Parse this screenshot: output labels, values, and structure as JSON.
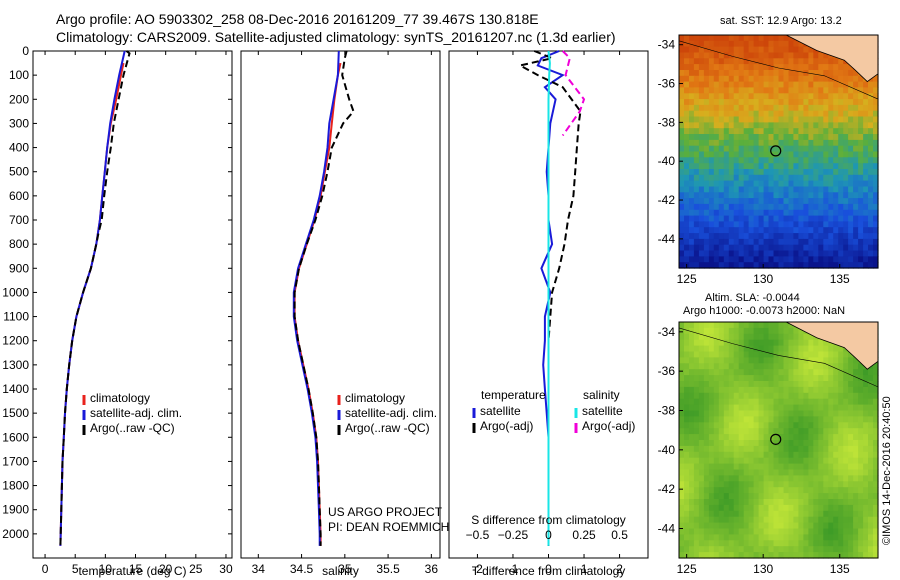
{
  "header": {
    "line1": "Argo profile: AO 5903302_258 08-Dec-2016 20161209_77 39.467S 130.818E",
    "line2": "Climatology: CARS2009. Satellite-adjusted climatology: synTS_20161207.nc (1.3d earlier)"
  },
  "colors": {
    "climatology": "#e8221c",
    "satellite": "#1a1ad8",
    "argo": "#000000",
    "salinity_satellite": "#18e6e6",
    "salinity_argo": "#f000d8"
  },
  "chart_data": [
    {
      "type": "line",
      "panel": "temperature",
      "xlabel": "temperature (deg C)",
      "ylabel": "",
      "xlim": [
        -2,
        31
      ],
      "ylim": [
        0,
        2100
      ],
      "y_reversed": true,
      "xticks": [
        0,
        5,
        10,
        15,
        20,
        25,
        30
      ],
      "yticks": [
        0,
        100,
        200,
        300,
        400,
        500,
        600,
        700,
        800,
        900,
        1000,
        1100,
        1200,
        1300,
        1400,
        1500,
        1600,
        1700,
        1800,
        1900,
        2000
      ],
      "legend_position": "bottom-right",
      "series": [
        {
          "name": "climatology",
          "style": "solid",
          "color_key": "climatology",
          "x": [
            13.0,
            12.6,
            11.8,
            10.9,
            10.3,
            9.9,
            9.5,
            9.1,
            8.5,
            7.6,
            6.3,
            5.2,
            4.5,
            4.0,
            3.6,
            3.3,
            3.1,
            2.9,
            2.8,
            2.7,
            2.6,
            2.55
          ],
          "y": [
            50,
            100,
            200,
            300,
            400,
            500,
            600,
            700,
            800,
            900,
            1000,
            1100,
            1200,
            1300,
            1400,
            1500,
            1600,
            1700,
            1800,
            1900,
            2000,
            2050
          ]
        },
        {
          "name": "satellite-adj. clim.",
          "style": "solid",
          "color_key": "satellite",
          "x": [
            13.2,
            12.3,
            11.5,
            10.8,
            10.3,
            9.9,
            9.5,
            9.1,
            8.5,
            7.6,
            6.3,
            5.2,
            4.5,
            4.0,
            3.6,
            3.3,
            3.1,
            2.9,
            2.8,
            2.7,
            2.6,
            2.55
          ],
          "y": [
            0,
            100,
            200,
            300,
            400,
            500,
            600,
            700,
            800,
            900,
            1000,
            1100,
            1200,
            1300,
            1400,
            1500,
            1600,
            1700,
            1800,
            1900,
            2000,
            2050
          ]
        },
        {
          "name": "Argo(..raw -QC)",
          "style": "dashed",
          "color_key": "argo",
          "x": [
            13.5,
            14.0,
            13.0,
            12.2,
            11.4,
            10.9,
            10.3,
            9.8,
            9.4,
            8.9,
            8.5,
            7.6,
            6.3,
            5.2,
            4.5,
            4.0,
            3.6,
            3.3,
            3.1,
            2.9,
            2.8,
            2.7,
            2.6,
            2.55
          ],
          "y": [
            0,
            10,
            100,
            200,
            300,
            400,
            500,
            600,
            700,
            750,
            800,
            900,
            1000,
            1100,
            1200,
            1300,
            1400,
            1500,
            1600,
            1700,
            1800,
            1900,
            2000,
            2050
          ]
        }
      ]
    },
    {
      "type": "line",
      "panel": "salinity",
      "xlabel": "salinity",
      "xlim": [
        33.8,
        36.1
      ],
      "ylim": [
        0,
        2100
      ],
      "y_reversed": true,
      "xticks": [
        34,
        34.5,
        35,
        35.5,
        36
      ],
      "xticklabels": [
        "34",
        "34.5",
        "35",
        "35.5",
        "36"
      ],
      "legend_position": "bottom-right",
      "series": [
        {
          "name": "climatology",
          "style": "solid",
          "color_key": "climatology",
          "x": [
            34.95,
            34.92,
            34.88,
            34.85,
            34.82,
            34.77,
            34.72,
            34.65,
            34.56,
            34.47,
            34.42,
            34.42,
            34.46,
            34.52,
            34.58,
            34.63,
            34.67,
            34.69,
            34.7,
            34.71,
            34.72,
            34.72
          ],
          "y": [
            50,
            100,
            200,
            300,
            400,
            500,
            600,
            700,
            800,
            900,
            1000,
            1100,
            1200,
            1300,
            1400,
            1500,
            1600,
            1700,
            1800,
            1900,
            2000,
            2050
          ]
        },
        {
          "name": "satellite-adj. clim.",
          "style": "solid",
          "color_key": "satellite",
          "x": [
            34.93,
            34.92,
            34.87,
            34.82,
            34.8,
            34.76,
            34.71,
            34.64,
            34.55,
            34.46,
            34.41,
            34.41,
            34.45,
            34.51,
            34.57,
            34.62,
            34.66,
            34.68,
            34.69,
            34.7,
            34.71,
            34.71
          ],
          "y": [
            0,
            100,
            200,
            300,
            400,
            500,
            600,
            700,
            800,
            900,
            1000,
            1100,
            1200,
            1300,
            1400,
            1500,
            1600,
            1700,
            1800,
            1900,
            2000,
            2050
          ]
        },
        {
          "name": "Argo(..raw -QC)",
          "style": "dashed",
          "color_key": "argo",
          "x": [
            35.02,
            35.0,
            34.97,
            35.05,
            35.1,
            34.98,
            34.85,
            34.8,
            34.74,
            34.66,
            34.56,
            34.47,
            34.42,
            34.42,
            34.46,
            34.52,
            34.58,
            34.63,
            34.67,
            34.69,
            34.7,
            34.71,
            34.72,
            34.72
          ],
          "y": [
            0,
            30,
            100,
            200,
            250,
            300,
            400,
            500,
            600,
            700,
            800,
            900,
            1000,
            1100,
            1200,
            1300,
            1400,
            1500,
            1600,
            1700,
            1800,
            1900,
            2000,
            2050
          ]
        }
      ]
    },
    {
      "type": "line",
      "panel": "differences",
      "xlabel": "T difference from climatology",
      "top_label": "S difference from climatology",
      "xlim": [
        -2.8,
        2.8
      ],
      "ylim": [
        0,
        2100
      ],
      "y_reversed": true,
      "xticks": [
        -2,
        -1,
        0,
        1,
        2
      ],
      "top_ticks": [
        -0.5,
        -0.25,
        0,
        0.25,
        0.5
      ],
      "top_ticklabels": [
        "−0.5",
        "−0.25",
        "0",
        "0.25",
        "0.5"
      ],
      "legend": {
        "temperature_heading": "temperature",
        "salinity_heading": "salinity",
        "temperature_entries": [
          "satellite",
          "Argo(-adj)"
        ],
        "salinity_entries": [
          "satellite",
          "Argo(-adj)"
        ]
      },
      "series": [
        {
          "name": "satellite",
          "group": "temperature",
          "style": "solid",
          "color_key": "satellite",
          "x": [
            0.3,
            -0.2,
            -0.3,
            0.4,
            -0.1,
            0.2,
            0.05,
            0.0,
            -0.05,
            0.0,
            0.0,
            0.1,
            -0.2,
            0.05,
            -0.1,
            -0.1,
            -0.15,
            -0.1,
            -0.05,
            0.0,
            0.0,
            0.0,
            0.0,
            0.0,
            0.0
          ],
          "y": [
            0,
            30,
            60,
            100,
            150,
            200,
            300,
            400,
            500,
            600,
            700,
            800,
            900,
            1000,
            1100,
            1200,
            1300,
            1400,
            1500,
            1600,
            1700,
            1800,
            1900,
            2000,
            2050
          ]
        },
        {
          "name": "Argo(-adj)",
          "group": "temperature",
          "style": "dashed",
          "color_key": "argo",
          "x": [
            -0.4,
            0.1,
            -0.8,
            -0.3,
            0.4,
            0.9,
            0.85,
            0.8,
            0.75,
            0.7,
            0.55,
            0.45,
            0.3,
            0.1,
            0.05,
            0.0,
            0.0,
            0.0,
            0.0,
            0.0,
            0.0
          ],
          "y": [
            0,
            30,
            60,
            100,
            150,
            250,
            300,
            400,
            500,
            600,
            700,
            800,
            900,
            1000,
            1100,
            1200,
            1400,
            1600,
            1800,
            2000,
            2050
          ]
        },
        {
          "name": "satellite",
          "group": "salinity",
          "style": "solid",
          "color_key": "salinity_satellite",
          "x": [
            0.0,
            0.01,
            0.005,
            0.0,
            0.0,
            0.0,
            0.0,
            0.0,
            0.0,
            0.0,
            0.0,
            0.0
          ],
          "y": [
            0,
            50,
            100,
            200,
            400,
            600,
            800,
            1000,
            1200,
            1600,
            2000,
            2050
          ]
        },
        {
          "name": "Argo(-adj)",
          "group": "salinity",
          "style": "dashed",
          "color_key": "salinity_argo",
          "x": [
            0.1,
            0.15,
            0.12,
            0.25,
            0.22,
            0.1
          ],
          "y": [
            0,
            30,
            100,
            200,
            250,
            350
          ]
        }
      ]
    }
  ],
  "project": {
    "line1": "US ARGO PROJECT",
    "line2": "PI: DEAN ROEMMICH"
  },
  "maps": {
    "sst": {
      "title": "sat. SST: 12.9 Argo: 13.2",
      "xticks": [
        125,
        130,
        135
      ],
      "yticks": [
        -34,
        -36,
        -38,
        -40,
        -42,
        -44
      ],
      "xlim": [
        124.5,
        137.5
      ],
      "ylim": [
        -45.5,
        -33.5
      ],
      "marker": {
        "lon": 130.818,
        "lat": -39.467
      }
    },
    "sla": {
      "title1": "Altim. SLA: -0.0044",
      "title2": "Argo h1000: -0.0073 h2000: NaN",
      "xticks": [
        125,
        130,
        135
      ],
      "yticks": [
        -34,
        -36,
        -38,
        -40,
        -42,
        -44
      ],
      "xlim": [
        124.5,
        137.5
      ],
      "ylim": [
        -45.5,
        -33.5
      ],
      "marker": {
        "lon": 130.818,
        "lat": -39.467
      }
    }
  },
  "stamp": "©IMOS 14-Dec-2016 20:40:50"
}
